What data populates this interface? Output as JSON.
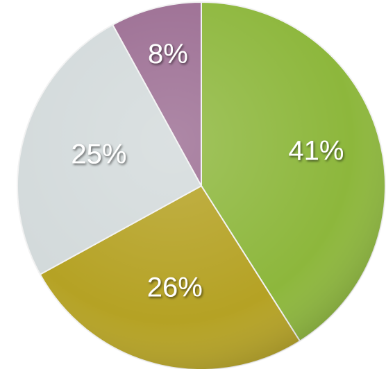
{
  "chart_data": {
    "type": "pie",
    "start_angle_deg": 0,
    "direction": "clockwise",
    "slices": [
      {
        "label": "41%",
        "value": 41,
        "color": "#8db73c"
      },
      {
        "label": "26%",
        "value": 26,
        "color": "#b5a224"
      },
      {
        "label": "25%",
        "value": 25,
        "color": "#d3dadb"
      },
      {
        "label": "8%",
        "value": 8,
        "color": "#9c6e93"
      }
    ],
    "background_texture": "earth-globe"
  }
}
